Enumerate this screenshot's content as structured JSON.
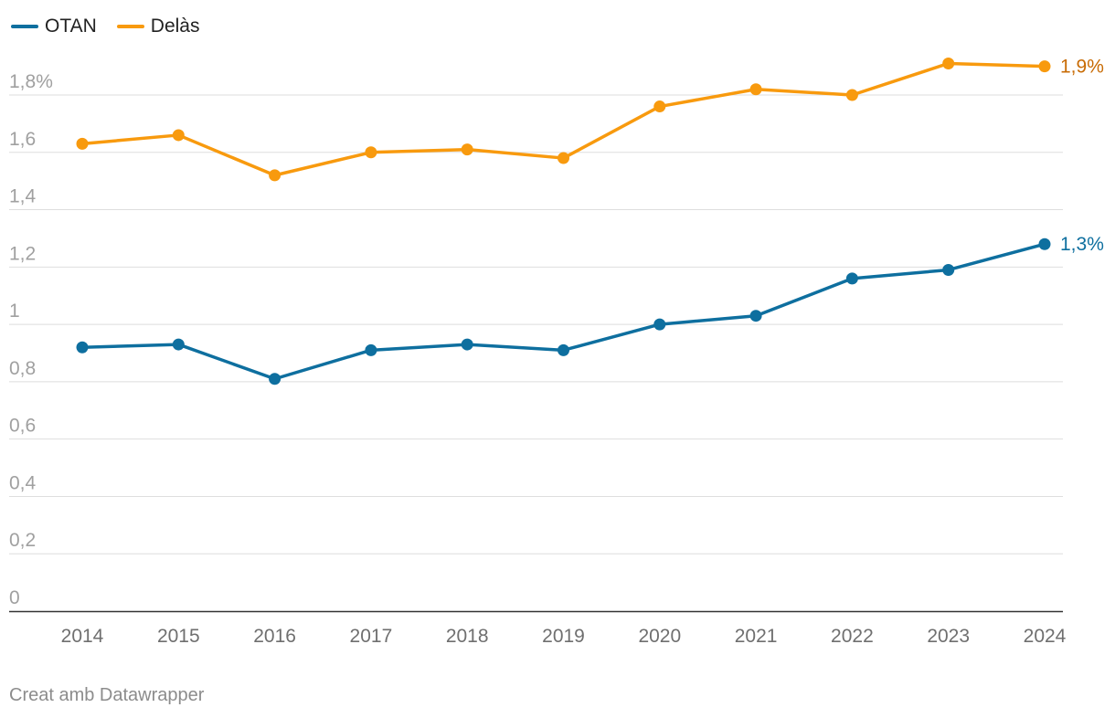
{
  "chart_data": {
    "type": "line",
    "title": "",
    "xlabel": "",
    "ylabel": "",
    "ylim": [
      0,
      1.8
    ],
    "y_ticks": [
      0,
      0.2,
      0.4,
      0.6,
      0.8,
      1,
      1.2,
      1.4,
      1.6,
      1.8
    ],
    "y_tick_labels": [
      "0",
      "0,2",
      "0,4",
      "0,6",
      "0,8",
      "1",
      "1,2",
      "1,4",
      "1,6",
      "1,8%"
    ],
    "categories": [
      "2014",
      "2015",
      "2016",
      "2017",
      "2018",
      "2019",
      "2020",
      "2021",
      "2022",
      "2023",
      "2024"
    ],
    "grid": true,
    "legend_position": "top-left",
    "series": [
      {
        "name": "OTAN",
        "color": "#0e6f9f",
        "label_color": "#0e6f9f",
        "values": [
          0.92,
          0.93,
          0.81,
          0.91,
          0.93,
          0.91,
          1.0,
          1.03,
          1.16,
          1.19,
          1.28
        ],
        "end_label": "1,3%"
      },
      {
        "name": "Delàs",
        "color": "#f89a0e",
        "label_color": "#c86b04",
        "values": [
          1.63,
          1.66,
          1.52,
          1.6,
          1.61,
          1.58,
          1.76,
          1.82,
          1.8,
          1.91,
          1.9
        ],
        "end_label": "1,9%"
      }
    ]
  },
  "footer": {
    "credit": "Creat amb Datawrapper"
  }
}
